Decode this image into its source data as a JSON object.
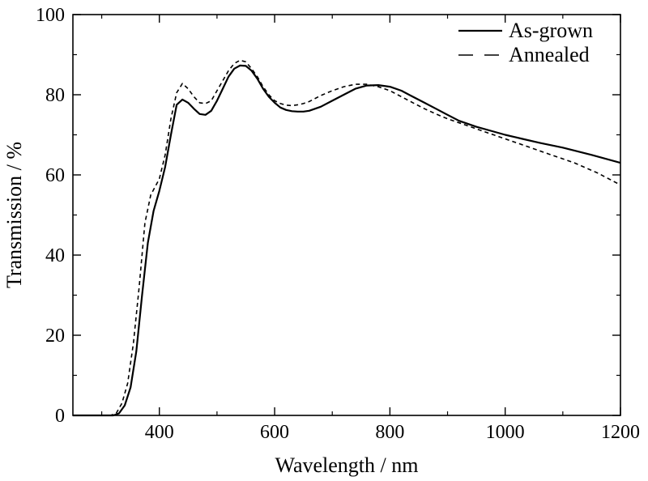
{
  "chart_data": {
    "type": "line",
    "xlabel": "Wavelength / nm",
    "ylabel": "Transmission / %",
    "xlim": [
      250,
      1200
    ],
    "ylim": [
      0,
      100
    ],
    "x_ticks": [
      400,
      600,
      800,
      1000,
      1200
    ],
    "y_ticks": [
      0,
      20,
      40,
      60,
      80,
      100
    ],
    "x_minor_ticks": [
      300,
      500,
      700,
      900,
      1100
    ],
    "y_minor_ticks": [
      10,
      30,
      50,
      70,
      90
    ],
    "grid": false,
    "legend_position": "top-right",
    "series": [
      {
        "name": "As-grown",
        "style": "solid",
        "color": "#000000",
        "points": [
          [
            250,
            0
          ],
          [
            300,
            0
          ],
          [
            320,
            0
          ],
          [
            330,
            0.5
          ],
          [
            340,
            2.5
          ],
          [
            350,
            7
          ],
          [
            360,
            16
          ],
          [
            370,
            30
          ],
          [
            380,
            43
          ],
          [
            390,
            51
          ],
          [
            400,
            56
          ],
          [
            410,
            62
          ],
          [
            420,
            70
          ],
          [
            430,
            77.5
          ],
          [
            440,
            78.8
          ],
          [
            450,
            78
          ],
          [
            460,
            76.5
          ],
          [
            470,
            75.2
          ],
          [
            480,
            75
          ],
          [
            490,
            76
          ],
          [
            500,
            78.5
          ],
          [
            510,
            81.5
          ],
          [
            520,
            84.5
          ],
          [
            530,
            86.5
          ],
          [
            540,
            87.3
          ],
          [
            550,
            87.2
          ],
          [
            560,
            86
          ],
          [
            570,
            84
          ],
          [
            580,
            81.5
          ],
          [
            590,
            79.5
          ],
          [
            600,
            78
          ],
          [
            610,
            76.8
          ],
          [
            620,
            76.2
          ],
          [
            630,
            75.9
          ],
          [
            640,
            75.8
          ],
          [
            650,
            75.8
          ],
          [
            660,
            76
          ],
          [
            680,
            77
          ],
          [
            700,
            78.5
          ],
          [
            720,
            80
          ],
          [
            740,
            81.5
          ],
          [
            760,
            82.3
          ],
          [
            780,
            82.4
          ],
          [
            800,
            82
          ],
          [
            820,
            81
          ],
          [
            840,
            79.5
          ],
          [
            860,
            78
          ],
          [
            880,
            76.5
          ],
          [
            900,
            75
          ],
          [
            920,
            73.5
          ],
          [
            950,
            72
          ],
          [
            980,
            70.8
          ],
          [
            1000,
            70
          ],
          [
            1030,
            69
          ],
          [
            1060,
            68
          ],
          [
            1100,
            66.8
          ],
          [
            1150,
            65
          ],
          [
            1200,
            63
          ]
        ]
      },
      {
        "name": "Annealed",
        "style": "dashed",
        "color": "#000000",
        "points": [
          [
            250,
            0
          ],
          [
            300,
            0
          ],
          [
            315,
            0
          ],
          [
            325,
            0.5
          ],
          [
            335,
            3
          ],
          [
            345,
            8
          ],
          [
            355,
            18
          ],
          [
            365,
            32
          ],
          [
            375,
            48
          ],
          [
            385,
            55
          ],
          [
            400,
            59
          ],
          [
            410,
            65
          ],
          [
            420,
            74
          ],
          [
            430,
            80.5
          ],
          [
            440,
            82.8
          ],
          [
            450,
            81.5
          ],
          [
            460,
            79.5
          ],
          [
            470,
            78
          ],
          [
            480,
            77.8
          ],
          [
            490,
            78.5
          ],
          [
            500,
            81
          ],
          [
            510,
            83.5
          ],
          [
            520,
            86
          ],
          [
            530,
            87.8
          ],
          [
            540,
            88.6
          ],
          [
            550,
            88.2
          ],
          [
            560,
            86.5
          ],
          [
            570,
            84.5
          ],
          [
            580,
            82
          ],
          [
            590,
            80
          ],
          [
            600,
            78.5
          ],
          [
            610,
            77.8
          ],
          [
            620,
            77.4
          ],
          [
            630,
            77.3
          ],
          [
            640,
            77.5
          ],
          [
            650,
            77.8
          ],
          [
            660,
            78.3
          ],
          [
            680,
            79.8
          ],
          [
            700,
            81
          ],
          [
            720,
            82
          ],
          [
            740,
            82.6
          ],
          [
            760,
            82.6
          ],
          [
            780,
            82
          ],
          [
            800,
            81
          ],
          [
            820,
            79.5
          ],
          [
            840,
            78
          ],
          [
            860,
            76.5
          ],
          [
            880,
            75.2
          ],
          [
            900,
            74
          ],
          [
            930,
            72.5
          ],
          [
            960,
            71
          ],
          [
            1000,
            69
          ],
          [
            1040,
            67
          ],
          [
            1080,
            65
          ],
          [
            1120,
            63
          ],
          [
            1160,
            60.5
          ],
          [
            1200,
            57.5
          ]
        ]
      }
    ]
  }
}
